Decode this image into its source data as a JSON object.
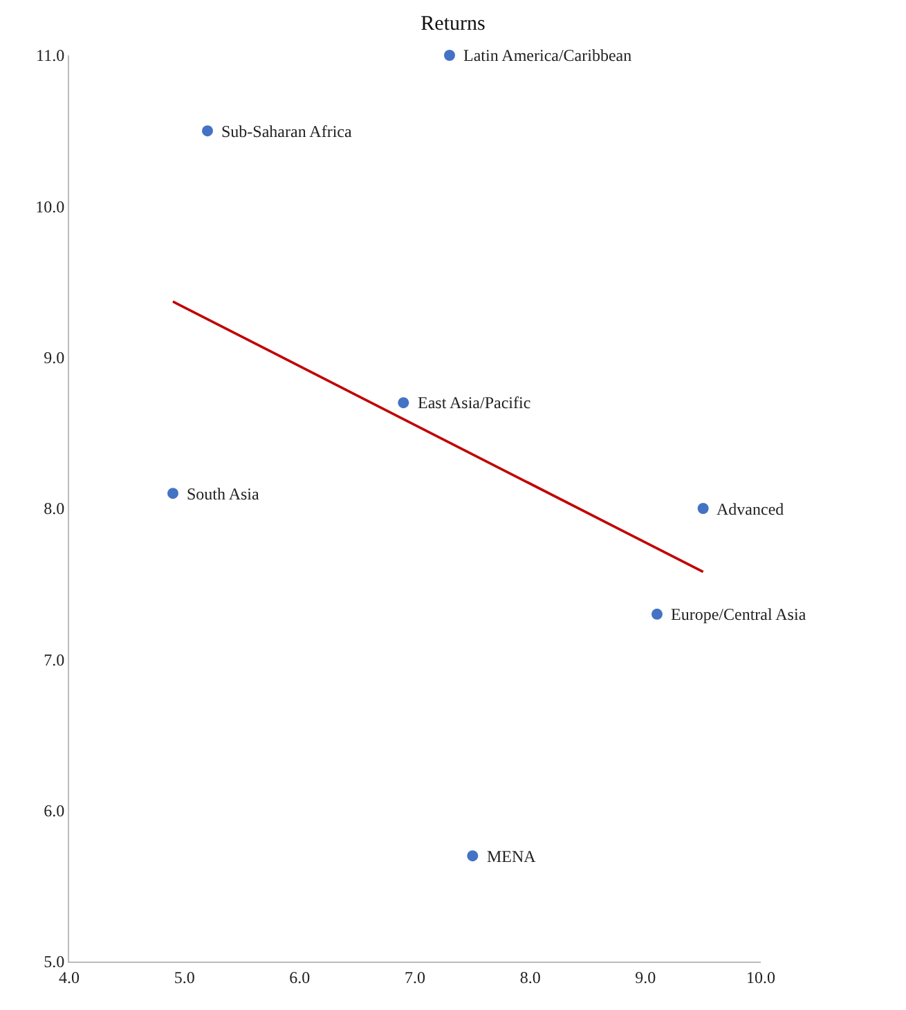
{
  "chart_data": {
    "type": "scatter",
    "title": "Returns",
    "series": [
      {
        "color": "#4472c4",
        "marker": "circle",
        "x": [
          7.3,
          5.2,
          6.9,
          4.9,
          9.5,
          9.1,
          7.5
        ],
        "values": [
          11.0,
          10.5,
          8.7,
          8.1,
          8.0,
          7.3,
          5.7
        ]
      },
      {
        "type": "line",
        "color": "#c00000",
        "x": [
          4.9,
          9.5
        ],
        "values": [
          9.37,
          7.58
        ]
      }
    ],
    "annotations": [
      {
        "text": "Latin America/Caribbean",
        "x": 7.3,
        "y": 11.0
      },
      {
        "text": "Sub-Saharan Africa",
        "x": 5.2,
        "y": 10.5
      },
      {
        "text": "East Asia/Pacific",
        "x": 6.9,
        "y": 8.7
      },
      {
        "text": "South Asia",
        "x": 4.9,
        "y": 8.1
      },
      {
        "text": "Advanced",
        "x": 9.5,
        "y": 8.0
      },
      {
        "text": "Europe/Central Asia",
        "x": 9.1,
        "y": 7.3
      },
      {
        "text": "MENA",
        "x": 7.5,
        "y": 5.7
      }
    ],
    "xlim": [
      4.0,
      10.0
    ],
    "xticks": [
      {
        "value": 4,
        "label": "4.0"
      },
      {
        "value": 5,
        "label": "5.0"
      },
      {
        "value": 6,
        "label": "6.0"
      },
      {
        "value": 7,
        "label": "7.0"
      },
      {
        "value": 8,
        "label": "8.0"
      },
      {
        "value": 9,
        "label": "9.0"
      },
      {
        "value": 10,
        "label": "10.0"
      }
    ],
    "ylim": [
      5.0,
      11.0
    ],
    "yticks": [
      {
        "value": 5,
        "label": "5.0"
      },
      {
        "value": 6,
        "label": "6.0"
      },
      {
        "value": 7,
        "label": "7.0"
      },
      {
        "value": 8,
        "label": "8.0"
      },
      {
        "value": 9,
        "label": "9.0"
      },
      {
        "value": 10,
        "label": "10.0"
      },
      {
        "value": 11,
        "label": "11.0"
      }
    ],
    "grid": false
  }
}
